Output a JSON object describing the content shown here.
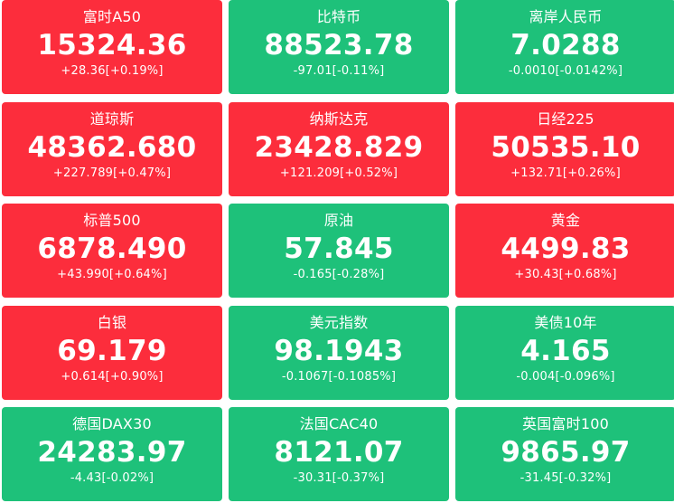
{
  "tiles": [
    {
      "name": "富时A50",
      "price": "15324.36",
      "change": "+28.36[+0.19%]",
      "direction": "up"
    },
    {
      "name": "比特币",
      "price": "88523.78",
      "change": "-97.01[-0.11%]",
      "direction": "down"
    },
    {
      "name": "离岸人民币",
      "price": "7.0288",
      "change": "-0.0010[-0.0142%]",
      "direction": "down"
    },
    {
      "name": "道琼斯",
      "price": "48362.680",
      "change": "+227.789[+0.47%]",
      "direction": "up"
    },
    {
      "name": "纳斯达克",
      "price": "23428.829",
      "change": "+121.209[+0.52%]",
      "direction": "up"
    },
    {
      "name": "日经225",
      "price": "50535.10",
      "change": "+132.71[+0.26%]",
      "direction": "up"
    },
    {
      "name": "标普500",
      "price": "6878.490",
      "change": "+43.990[+0.64%]",
      "direction": "up"
    },
    {
      "name": "原油",
      "price": "57.845",
      "change": "-0.165[-0.28%]",
      "direction": "down"
    },
    {
      "name": "黄金",
      "price": "4499.83",
      "change": "+30.43[+0.68%]",
      "direction": "up"
    },
    {
      "name": "白银",
      "price": "69.179",
      "change": "+0.614[+0.90%]",
      "direction": "up"
    },
    {
      "name": "美元指数",
      "price": "98.1943",
      "change": "-0.1067[-0.1085%]",
      "direction": "down"
    },
    {
      "name": "美债10年",
      "price": "4.165",
      "change": "-0.004[-0.096%]",
      "direction": "down"
    },
    {
      "name": "德国DAX30",
      "price": "24283.97",
      "change": "-4.43[-0.02%]",
      "direction": "down"
    },
    {
      "name": "法国CAC40",
      "price": "8121.07",
      "change": "-30.31[-0.37%]",
      "direction": "down"
    },
    {
      "name": "英国富时100",
      "price": "9865.97",
      "change": "-31.45[-0.32%]",
      "direction": "down"
    }
  ],
  "colors": {
    "up": "#fc2d3c",
    "down": "#1ec17a",
    "text": "#ffffff"
  }
}
